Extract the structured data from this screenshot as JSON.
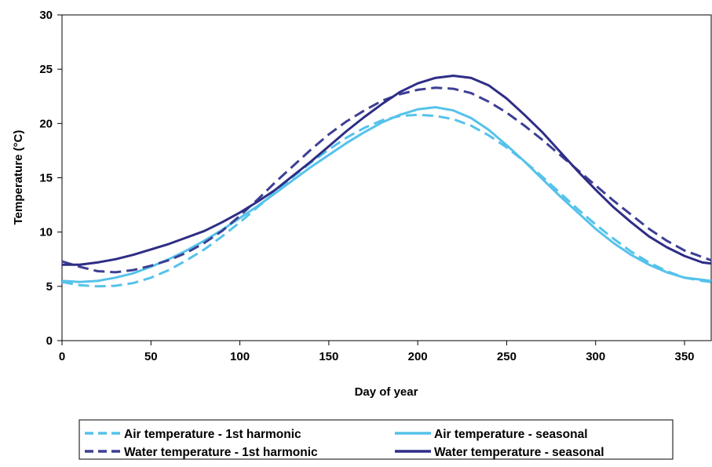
{
  "chart_data": {
    "type": "line",
    "title": "",
    "xlabel": "Day of year",
    "ylabel": "Temperature (°C)",
    "xlim": [
      0,
      365
    ],
    "ylim": [
      0,
      30
    ],
    "xticks": [
      0,
      50,
      100,
      150,
      200,
      250,
      300,
      350
    ],
    "yticks": [
      0,
      5,
      10,
      15,
      20,
      25,
      30
    ],
    "grid": false,
    "legend_position": "bottom",
    "series": [
      {
        "name": "Air temperature - 1st harmonic",
        "style": "dashed",
        "color": "#55c2ea",
        "points": [
          [
            0,
            5.4
          ],
          [
            10,
            5.1
          ],
          [
            20,
            5.0
          ],
          [
            30,
            5.05
          ],
          [
            40,
            5.3
          ],
          [
            50,
            5.8
          ],
          [
            60,
            6.5
          ],
          [
            70,
            7.4
          ],
          [
            80,
            8.4
          ],
          [
            90,
            9.6
          ],
          [
            100,
            10.9
          ],
          [
            110,
            12.3
          ],
          [
            120,
            13.7
          ],
          [
            130,
            15.1
          ],
          [
            140,
            16.4
          ],
          [
            150,
            17.6
          ],
          [
            160,
            18.7
          ],
          [
            170,
            19.6
          ],
          [
            180,
            20.3
          ],
          [
            190,
            20.7
          ],
          [
            200,
            20.8
          ],
          [
            210,
            20.7
          ],
          [
            220,
            20.4
          ],
          [
            230,
            19.8
          ],
          [
            240,
            18.9
          ],
          [
            250,
            17.8
          ],
          [
            260,
            16.5
          ],
          [
            270,
            15.1
          ],
          [
            280,
            13.6
          ],
          [
            290,
            12.1
          ],
          [
            300,
            10.7
          ],
          [
            310,
            9.4
          ],
          [
            320,
            8.2
          ],
          [
            330,
            7.2
          ],
          [
            340,
            6.4
          ],
          [
            350,
            5.8
          ],
          [
            360,
            5.5
          ],
          [
            365,
            5.4
          ]
        ]
      },
      {
        "name": "Air temperature - seasonal",
        "style": "solid",
        "color": "#55c2ea",
        "points": [
          [
            0,
            5.5
          ],
          [
            10,
            5.4
          ],
          [
            20,
            5.5
          ],
          [
            30,
            5.8
          ],
          [
            40,
            6.2
          ],
          [
            50,
            6.8
          ],
          [
            60,
            7.5
          ],
          [
            70,
            8.3
          ],
          [
            80,
            9.2
          ],
          [
            90,
            10.2
          ],
          [
            100,
            11.3
          ],
          [
            110,
            12.4
          ],
          [
            120,
            13.6
          ],
          [
            130,
            14.8
          ],
          [
            140,
            16.0
          ],
          [
            150,
            17.1
          ],
          [
            160,
            18.2
          ],
          [
            170,
            19.2
          ],
          [
            180,
            20.1
          ],
          [
            190,
            20.8
          ],
          [
            200,
            21.3
          ],
          [
            210,
            21.5
          ],
          [
            220,
            21.2
          ],
          [
            230,
            20.5
          ],
          [
            240,
            19.4
          ],
          [
            250,
            18.0
          ],
          [
            260,
            16.5
          ],
          [
            270,
            14.9
          ],
          [
            280,
            13.3
          ],
          [
            290,
            11.8
          ],
          [
            300,
            10.3
          ],
          [
            310,
            9.0
          ],
          [
            320,
            7.9
          ],
          [
            330,
            7.0
          ],
          [
            340,
            6.3
          ],
          [
            350,
            5.8
          ],
          [
            360,
            5.6
          ],
          [
            365,
            5.5
          ]
        ]
      },
      {
        "name": "Water temperature - 1st harmonic",
        "style": "dashed",
        "color": "#3d3f94",
        "points": [
          [
            0,
            7.3
          ],
          [
            10,
            6.8
          ],
          [
            20,
            6.4
          ],
          [
            30,
            6.3
          ],
          [
            40,
            6.5
          ],
          [
            50,
            6.9
          ],
          [
            60,
            7.4
          ],
          [
            70,
            8.1
          ],
          [
            80,
            9.0
          ],
          [
            90,
            10.1
          ],
          [
            100,
            11.5
          ],
          [
            110,
            13.0
          ],
          [
            120,
            14.6
          ],
          [
            130,
            16.1
          ],
          [
            140,
            17.6
          ],
          [
            150,
            19.0
          ],
          [
            160,
            20.2
          ],
          [
            170,
            21.2
          ],
          [
            180,
            22.1
          ],
          [
            190,
            22.7
          ],
          [
            200,
            23.1
          ],
          [
            210,
            23.3
          ],
          [
            220,
            23.2
          ],
          [
            230,
            22.8
          ],
          [
            240,
            22.0
          ],
          [
            250,
            21.0
          ],
          [
            260,
            19.8
          ],
          [
            270,
            18.5
          ],
          [
            280,
            17.1
          ],
          [
            290,
            15.7
          ],
          [
            300,
            14.3
          ],
          [
            310,
            12.9
          ],
          [
            320,
            11.6
          ],
          [
            330,
            10.3
          ],
          [
            340,
            9.2
          ],
          [
            350,
            8.3
          ],
          [
            360,
            7.7
          ],
          [
            365,
            7.4
          ]
        ]
      },
      {
        "name": "Water temperature - seasonal",
        "style": "solid",
        "color": "#2e2d85",
        "points": [
          [
            0,
            7.0
          ],
          [
            10,
            7.0
          ],
          [
            20,
            7.2
          ],
          [
            30,
            7.5
          ],
          [
            40,
            7.9
          ],
          [
            50,
            8.4
          ],
          [
            60,
            8.9
          ],
          [
            70,
            9.5
          ],
          [
            80,
            10.1
          ],
          [
            90,
            10.9
          ],
          [
            100,
            11.8
          ],
          [
            110,
            12.8
          ],
          [
            120,
            13.9
          ],
          [
            130,
            15.2
          ],
          [
            140,
            16.5
          ],
          [
            150,
            17.9
          ],
          [
            160,
            19.3
          ],
          [
            170,
            20.6
          ],
          [
            180,
            21.8
          ],
          [
            190,
            22.9
          ],
          [
            200,
            23.7
          ],
          [
            210,
            24.2
          ],
          [
            220,
            24.4
          ],
          [
            230,
            24.2
          ],
          [
            240,
            23.5
          ],
          [
            250,
            22.3
          ],
          [
            260,
            20.8
          ],
          [
            270,
            19.2
          ],
          [
            280,
            17.4
          ],
          [
            290,
            15.6
          ],
          [
            300,
            13.9
          ],
          [
            310,
            12.3
          ],
          [
            320,
            10.9
          ],
          [
            330,
            9.6
          ],
          [
            340,
            8.6
          ],
          [
            350,
            7.8
          ],
          [
            360,
            7.2
          ],
          [
            365,
            7.1
          ]
        ]
      }
    ]
  },
  "legend": {
    "items": [
      {
        "label": "Air temperature - 1st harmonic"
      },
      {
        "label": "Air temperature - seasonal"
      },
      {
        "label": "Water temperature - 1st harmonic"
      },
      {
        "label": "Water temperature - seasonal"
      }
    ]
  }
}
